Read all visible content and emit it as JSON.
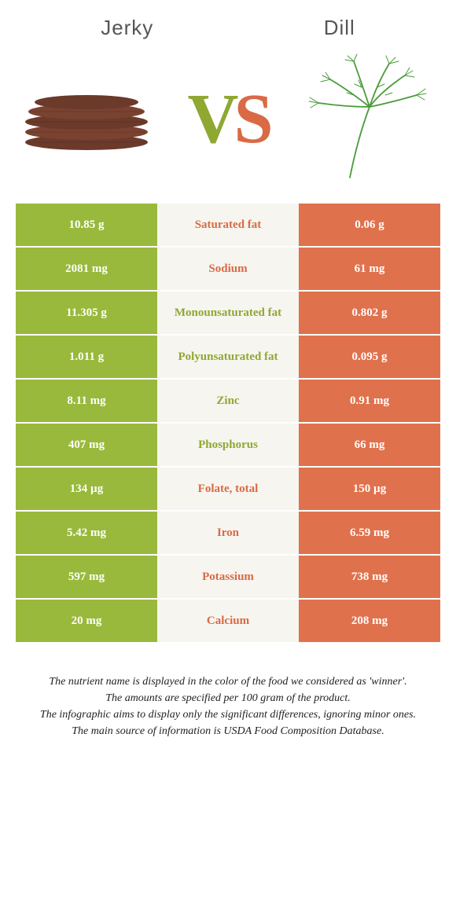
{
  "header": {
    "left": "Jerky",
    "right": "Dill"
  },
  "vs": {
    "v": "V",
    "s": "S"
  },
  "colors": {
    "green": "#99b93c",
    "orange": "#e0714d",
    "greenText": "#8fa832",
    "orangeText": "#d96a45",
    "midBg": "#f7f5f0"
  },
  "table": {
    "rows": [
      {
        "left": "10.85 g",
        "label": "Saturated fat",
        "right": "0.06 g",
        "winner": "right"
      },
      {
        "left": "2081 mg",
        "label": "Sodium",
        "right": "61 mg",
        "winner": "right"
      },
      {
        "left": "11.305 g",
        "label": "Monounsaturated fat",
        "right": "0.802 g",
        "winner": "left"
      },
      {
        "left": "1.011 g",
        "label": "Polyunsaturated fat",
        "right": "0.095 g",
        "winner": "left"
      },
      {
        "left": "8.11 mg",
        "label": "Zinc",
        "right": "0.91 mg",
        "winner": "left"
      },
      {
        "left": "407 mg",
        "label": "Phosphorus",
        "right": "66 mg",
        "winner": "left"
      },
      {
        "left": "134 µg",
        "label": "Folate, total",
        "right": "150 µg",
        "winner": "right"
      },
      {
        "left": "5.42 mg",
        "label": "Iron",
        "right": "6.59 mg",
        "winner": "right"
      },
      {
        "left": "597 mg",
        "label": "Potassium",
        "right": "738 mg",
        "winner": "right"
      },
      {
        "left": "20 mg",
        "label": "Calcium",
        "right": "208 mg",
        "winner": "right"
      }
    ]
  },
  "footer": {
    "l1": "The nutrient name is displayed in the color of the food we considered as 'winner'.",
    "l2": "The amounts are specified per 100 gram of the product.",
    "l3": "The infographic aims to display only the significant differences, ignoring minor ones.",
    "l4": "The main source of information is USDA Food Composition Database."
  }
}
